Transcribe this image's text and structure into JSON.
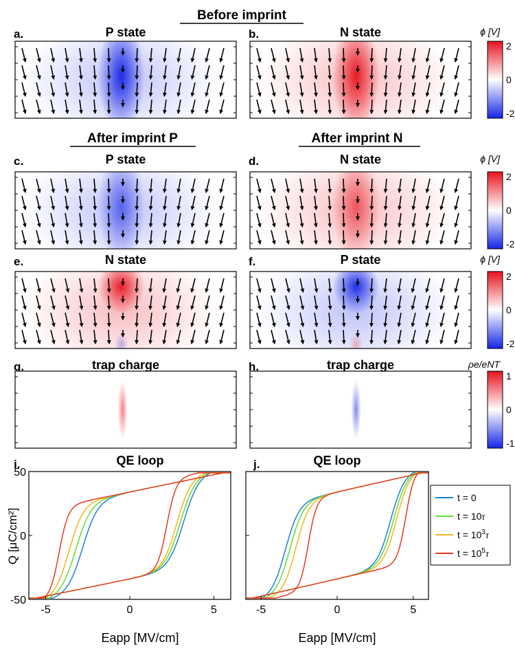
{
  "sections": {
    "before": "Before imprint",
    "after_p": "After imprint P",
    "after_n": "After imprint N"
  },
  "panels": [
    {
      "id": "a",
      "letter": "a.",
      "title": "P state",
      "row": 0,
      "col": 0,
      "kind": "field",
      "sign": -1,
      "amp": 1.0,
      "trap": false
    },
    {
      "id": "b",
      "letter": "b.",
      "title": "N state",
      "row": 0,
      "col": 1,
      "kind": "field",
      "sign": 1,
      "amp": 1.0,
      "trap": false
    },
    {
      "id": "c",
      "letter": "c.",
      "title": "P state",
      "row": 1,
      "col": 0,
      "kind": "field",
      "sign": -1,
      "amp": 0.65,
      "trap": false
    },
    {
      "id": "d",
      "letter": "d.",
      "title": "N state",
      "row": 1,
      "col": 1,
      "kind": "field",
      "sign": 1,
      "amp": 0.65,
      "trap": false
    },
    {
      "id": "e",
      "letter": "e.",
      "title": "N state",
      "row": 2,
      "col": 0,
      "kind": "field",
      "sign": 1,
      "amp": 1.0,
      "trap": true
    },
    {
      "id": "f",
      "letter": "f.",
      "title": "P state",
      "row": 2,
      "col": 1,
      "kind": "field",
      "sign": -1,
      "amp": 1.0,
      "trap": true
    },
    {
      "id": "g",
      "letter": "g.",
      "title": "trap charge",
      "row": 3,
      "col": 0,
      "kind": "trap",
      "sign": 1,
      "amp": 0.35,
      "trap": false
    },
    {
      "id": "h",
      "letter": "h.",
      "title": "trap charge",
      "row": 3,
      "col": 1,
      "kind": "trap",
      "sign": -1,
      "amp": 0.35,
      "trap": false
    }
  ],
  "colorbars": [
    {
      "row": 0,
      "label": "ϕ [V]",
      "ticks": [
        "2",
        "0",
        "-2"
      ]
    },
    {
      "row": 1,
      "label": "ϕ [V]",
      "ticks": [
        "2",
        "0",
        "-2"
      ]
    },
    {
      "row": 2,
      "label": "ϕ [V]",
      "ticks": [
        "2",
        "0",
        "-2"
      ]
    },
    {
      "row": 3,
      "label": "ρe/eNT",
      "ticks": [
        "1",
        "0",
        "-1"
      ]
    }
  ],
  "colors": {
    "positive": "#e8121d",
    "negative": "#1425e6",
    "neutral": "#ffffff"
  },
  "chart_data": [
    {
      "type": "line",
      "panel": "i.",
      "title": "QE loop",
      "xlabel": "Eapp [MV/cm]",
      "ylabel": "Q [μC/cm²]",
      "xlim": [
        -6,
        6
      ],
      "ylim": [
        -50,
        50
      ],
      "xticks": [
        "-5",
        "0",
        "5"
      ],
      "yticks": [
        "50",
        "0",
        "-50"
      ],
      "series": [
        {
          "name": "t = 0",
          "color": "#1e7fd6",
          "sat": 5.0,
          "up": 3.2,
          "down": -2.8,
          "w": 0.9
        },
        {
          "name": "t = 10τ",
          "color": "#5ddc35",
          "sat": 4.2,
          "up": 3.0,
          "down": -3.2,
          "w": 0.9
        },
        {
          "name": "t = 10³τ",
          "color": "#f5b51a",
          "sat": 4.2,
          "up": 2.8,
          "down": -3.6,
          "w": 0.85
        },
        {
          "name": "t = 10⁵τ",
          "color": "#e5391d",
          "sat": 4.6,
          "up": 2.2,
          "down": -4.2,
          "w": 0.55
        }
      ]
    },
    {
      "type": "line",
      "panel": "j.",
      "title": "QE loop",
      "xlabel": "Eapp [MV/cm]",
      "ylabel": "",
      "xlim": [
        -6,
        6
      ],
      "ylim": [
        -50,
        50
      ],
      "xticks": [
        "-5",
        "0",
        "5"
      ],
      "yticks": [
        "50",
        "0",
        "-50"
      ],
      "series": [
        {
          "name": "t = 0",
          "color": "#1e7fd6",
          "sat": 4.5,
          "up": 3.5,
          "down": -3.4,
          "w": 0.9
        },
        {
          "name": "t = 10τ",
          "color": "#5ddc35",
          "sat": 4.0,
          "up": 3.7,
          "down": -3.1,
          "w": 0.9
        },
        {
          "name": "t = 10³τ",
          "color": "#f5b51a",
          "sat": 3.6,
          "up": 3.9,
          "down": -2.7,
          "w": 0.85
        },
        {
          "name": "t = 10⁵τ",
          "color": "#e5391d",
          "sat": 3.0,
          "up": 4.5,
          "down": -1.9,
          "w": 0.55
        }
      ]
    }
  ],
  "legend": {
    "entries": [
      {
        "base": "t = 0",
        "sup": "",
        "suffix": "",
        "color": "#1e7fd6"
      },
      {
        "base": "t = 10",
        "sup": "",
        "suffix": "τ",
        "color": "#5ddc35"
      },
      {
        "base": "t = 10",
        "sup": "3",
        "suffix": "τ",
        "color": "#f5b51a"
      },
      {
        "base": "t = 10",
        "sup": "5",
        "suffix": "τ",
        "color": "#e5391d"
      }
    ]
  }
}
